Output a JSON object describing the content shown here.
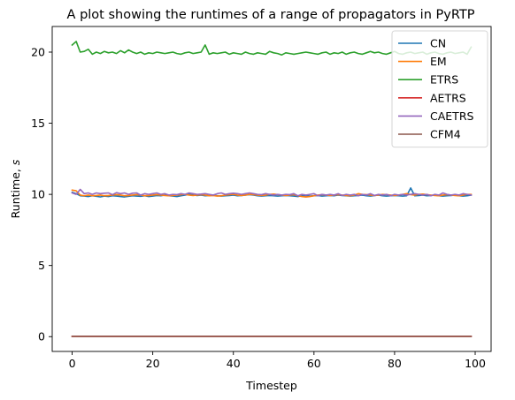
{
  "chart_data": {
    "type": "line",
    "title": "A plot showing the runtimes of a range of propagators in PyRTP",
    "xlabel": "Timestep",
    "ylabel": "Runtime, s",
    "xlim": [
      -4.95,
      103.95
    ],
    "ylim": [
      -1.04,
      21.8
    ],
    "x_ticks": [
      0,
      20,
      40,
      60,
      80,
      100
    ],
    "y_ticks": [
      0,
      5,
      10,
      15,
      20
    ],
    "grid": false,
    "legend_position": "top-right",
    "x": [
      0,
      1,
      2,
      3,
      4,
      5,
      6,
      7,
      8,
      9,
      10,
      11,
      12,
      13,
      14,
      15,
      16,
      17,
      18,
      19,
      20,
      21,
      22,
      23,
      24,
      25,
      26,
      27,
      28,
      29,
      30,
      31,
      32,
      33,
      34,
      35,
      36,
      37,
      38,
      39,
      40,
      41,
      42,
      43,
      44,
      45,
      46,
      47,
      48,
      49,
      50,
      51,
      52,
      53,
      54,
      55,
      56,
      57,
      58,
      59,
      60,
      61,
      62,
      63,
      64,
      65,
      66,
      67,
      68,
      69,
      70,
      71,
      72,
      73,
      74,
      75,
      76,
      77,
      78,
      79,
      80,
      81,
      82,
      83,
      84,
      85,
      86,
      87,
      88,
      89,
      90,
      91,
      92,
      93,
      94,
      95,
      96,
      97,
      98,
      99
    ],
    "series": [
      {
        "name": "CN",
        "color": "#1f77b4",
        "values": [
          10.15,
          10.05,
          9.9,
          9.88,
          9.85,
          9.9,
          9.86,
          9.82,
          9.88,
          9.85,
          9.9,
          9.88,
          9.85,
          9.82,
          9.86,
          9.9,
          9.88,
          9.86,
          9.9,
          9.85,
          9.88,
          9.92,
          9.9,
          9.95,
          9.9,
          9.88,
          9.85,
          9.9,
          9.95,
          10.0,
          9.96,
          9.92,
          9.95,
          9.9,
          9.92,
          9.95,
          9.9,
          9.88,
          9.9,
          9.92,
          9.95,
          9.9,
          9.92,
          9.95,
          9.98,
          9.95,
          9.9,
          9.88,
          9.9,
          9.92,
          9.9,
          9.88,
          9.9,
          9.92,
          9.9,
          9.88,
          9.85,
          9.9,
          9.92,
          9.88,
          9.9,
          9.92,
          9.88,
          9.9,
          9.92,
          9.9,
          9.95,
          9.92,
          9.9,
          9.88,
          9.9,
          9.92,
          9.95,
          9.9,
          9.88,
          9.92,
          9.95,
          9.9,
          9.88,
          9.9,
          9.92,
          9.9,
          9.88,
          9.9,
          10.45,
          9.9,
          9.92,
          9.95,
          9.9,
          9.92,
          9.95,
          9.9,
          9.88,
          9.9,
          9.92,
          9.95,
          9.9,
          9.88,
          9.9,
          9.95
        ]
      },
      {
        "name": "EM",
        "color": "#ff7f0e",
        "values": [
          10.3,
          10.25,
          9.95,
          9.9,
          9.95,
          9.9,
          9.92,
          9.95,
          9.9,
          9.92,
          9.95,
          9.98,
          9.95,
          9.9,
          9.92,
          9.95,
          9.98,
          9.95,
          9.9,
          9.92,
          9.95,
          9.98,
          9.95,
          9.92,
          9.9,
          9.92,
          9.95,
          9.98,
          10.0,
          9.95,
          9.92,
          9.95,
          9.98,
          9.95,
          9.9,
          9.92,
          9.88,
          9.9,
          9.95,
          9.98,
          10.0,
          9.95,
          9.92,
          9.95,
          10.0,
          9.98,
          9.95,
          9.92,
          9.95,
          10.0,
          10.02,
          9.98,
          9.95,
          9.92,
          9.95,
          9.98,
          9.9,
          9.85,
          9.82,
          9.85,
          9.9,
          9.95,
          9.98,
          9.95,
          9.92,
          9.95,
          9.98,
          9.95,
          9.92,
          9.9,
          9.95,
          10.05,
          10.0,
          9.98,
          9.95,
          9.92,
          9.95,
          10.0,
          9.98,
          9.95,
          9.92,
          9.95,
          10.0,
          10.05,
          9.98,
          9.95,
          10.0,
          10.02,
          9.98,
          9.95,
          9.92,
          9.9,
          9.95,
          9.98,
          9.95,
          9.92,
          9.9,
          9.95,
          10.0,
          10.0
        ]
      },
      {
        "name": "ETRS",
        "color": "#2ca02c",
        "values": [
          20.5,
          20.75,
          20.0,
          20.05,
          20.2,
          19.85,
          20.0,
          19.9,
          20.05,
          19.95,
          20.0,
          19.9,
          20.1,
          19.95,
          20.15,
          20.0,
          19.9,
          20.0,
          19.85,
          19.95,
          19.9,
          20.0,
          19.95,
          19.9,
          19.95,
          20.0,
          19.9,
          19.85,
          19.95,
          20.0,
          19.9,
          19.95,
          20.0,
          20.5,
          19.85,
          19.95,
          19.9,
          19.95,
          20.0,
          19.85,
          19.95,
          19.9,
          19.85,
          20.0,
          19.9,
          19.85,
          19.95,
          19.9,
          19.85,
          20.05,
          19.95,
          19.9,
          19.8,
          19.95,
          19.9,
          19.85,
          19.9,
          19.95,
          20.0,
          19.95,
          19.9,
          19.85,
          19.95,
          20.0,
          19.85,
          19.95,
          19.9,
          20.0,
          19.85,
          19.95,
          20.0,
          19.9,
          19.85,
          19.95,
          20.05,
          19.95,
          20.0,
          19.9,
          19.85,
          19.95,
          20.05,
          19.9,
          19.85,
          19.95,
          20.0,
          19.9,
          19.95,
          20.0,
          19.85,
          19.95,
          20.0,
          19.9,
          19.85,
          19.95,
          20.0,
          19.9,
          19.95,
          20.0,
          19.85,
          20.35
        ]
      },
      {
        "name": "AETRS",
        "color": "#d62728",
        "values": [
          0.02,
          0.02,
          0.02,
          0.02,
          0.02,
          0.02,
          0.02,
          0.02,
          0.02,
          0.02,
          0.02,
          0.02,
          0.02,
          0.02,
          0.02,
          0.02,
          0.02,
          0.02,
          0.02,
          0.02,
          0.02,
          0.02,
          0.02,
          0.02,
          0.02,
          0.02,
          0.02,
          0.02,
          0.02,
          0.02,
          0.02,
          0.02,
          0.02,
          0.02,
          0.02,
          0.02,
          0.02,
          0.02,
          0.02,
          0.02,
          0.02,
          0.02,
          0.02,
          0.02,
          0.02,
          0.02,
          0.02,
          0.02,
          0.02,
          0.02,
          0.02,
          0.02,
          0.02,
          0.02,
          0.02,
          0.02,
          0.02,
          0.02,
          0.02,
          0.02,
          0.02,
          0.02,
          0.02,
          0.02,
          0.02,
          0.02,
          0.02,
          0.02,
          0.02,
          0.02,
          0.02,
          0.02,
          0.02,
          0.02,
          0.02,
          0.02,
          0.02,
          0.02,
          0.02,
          0.02,
          0.02,
          0.02,
          0.02,
          0.02,
          0.02,
          0.02,
          0.02,
          0.02,
          0.02,
          0.02,
          0.02,
          0.02,
          0.02,
          0.02,
          0.02,
          0.02,
          0.02,
          0.02,
          0.02,
          0.02
        ]
      },
      {
        "name": "CAETRS",
        "color": "#9467bd",
        "values": [
          10.1,
          10.0,
          10.35,
          10.05,
          10.1,
          10.0,
          10.1,
          10.05,
          10.08,
          10.1,
          9.98,
          10.12,
          10.05,
          10.1,
          10.0,
          10.08,
          10.1,
          9.95,
          10.05,
          10.0,
          10.05,
          10.1,
          10.0,
          10.05,
          9.95,
          10.0,
          9.98,
          10.05,
          10.0,
          10.1,
          10.05,
          10.0,
          10.02,
          10.05,
          10.0,
          9.95,
          10.05,
          10.1,
          10.0,
          10.05,
          10.08,
          10.05,
          10.0,
          10.05,
          10.1,
          10.05,
          10.0,
          9.98,
          10.05,
          10.0,
          9.95,
          10.0,
          9.95,
          10.0,
          9.98,
          10.05,
          9.9,
          10.0,
          9.95,
          10.0,
          10.05,
          9.9,
          10.0,
          9.95,
          10.0,
          9.95,
          10.05,
          9.92,
          10.0,
          9.95,
          10.0,
          9.9,
          10.0,
          9.95,
          10.05,
          9.92,
          10.0,
          9.95,
          10.0,
          9.9,
          10.0,
          9.95,
          10.0,
          9.95,
          10.0,
          10.05,
          10.0,
          9.95,
          10.0,
          9.9,
          10.0,
          9.95,
          10.1,
          10.0,
          9.95,
          10.0,
          9.95,
          10.05,
          10.0,
          9.95
        ]
      },
      {
        "name": "CFM4",
        "color": "#8c564b",
        "values": [
          0.02,
          0.02,
          0.02,
          0.02,
          0.02,
          0.02,
          0.02,
          0.02,
          0.02,
          0.02,
          0.02,
          0.02,
          0.02,
          0.02,
          0.02,
          0.02,
          0.02,
          0.02,
          0.02,
          0.02,
          0.02,
          0.02,
          0.02,
          0.02,
          0.02,
          0.02,
          0.02,
          0.02,
          0.02,
          0.02,
          0.02,
          0.02,
          0.02,
          0.02,
          0.02,
          0.02,
          0.02,
          0.02,
          0.02,
          0.02,
          0.02,
          0.02,
          0.02,
          0.02,
          0.02,
          0.02,
          0.02,
          0.02,
          0.02,
          0.02,
          0.02,
          0.02,
          0.02,
          0.02,
          0.02,
          0.02,
          0.02,
          0.02,
          0.02,
          0.02,
          0.02,
          0.02,
          0.02,
          0.02,
          0.02,
          0.02,
          0.02,
          0.02,
          0.02,
          0.02,
          0.02,
          0.02,
          0.02,
          0.02,
          0.02,
          0.02,
          0.02,
          0.02,
          0.02,
          0.02,
          0.02,
          0.02,
          0.02,
          0.02,
          0.02,
          0.02,
          0.02,
          0.02,
          0.02,
          0.02,
          0.02,
          0.02,
          0.02,
          0.02,
          0.02,
          0.02,
          0.02,
          0.02,
          0.02,
          0.02
        ]
      }
    ]
  }
}
